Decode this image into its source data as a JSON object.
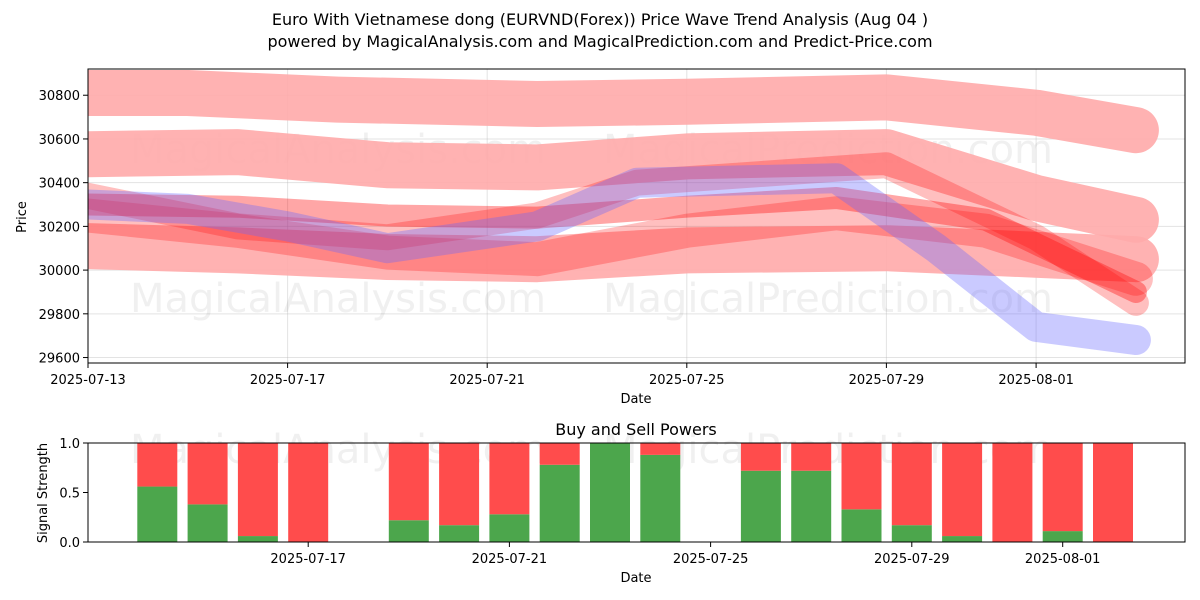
{
  "title": {
    "line1": "Euro With Vietnamese dong (EURVND(Forex)) Price Wave Trend Analysis (Aug 04 )",
    "line2": "powered by MagicalAnalysis.com and MagicalPrediction.com and Predict-Price.com"
  },
  "watermarks": [
    "MagicalAnalysis.com",
    "MagicalPrediction.com"
  ],
  "colors": {
    "red": "#ff0000",
    "blue": "#6666ff",
    "green": "#4ca64c",
    "bar_red": "#ff4c4c",
    "pink": "#ffaaaa"
  },
  "chart_data": [
    {
      "type": "line",
      "title": "",
      "xlabel": "Date",
      "ylabel": "Price",
      "ylim": [
        29575,
        30920
      ],
      "xlim": [
        "2025-07-13",
        "2025-08-04"
      ],
      "x_ticks": [
        "2025-07-13",
        "2025-07-17",
        "2025-07-21",
        "2025-07-25",
        "2025-07-29",
        "2025-08-01"
      ],
      "y_ticks": [
        29600,
        29800,
        30000,
        30200,
        30400,
        30600,
        30800
      ],
      "grid": true,
      "series": [
        {
          "name": "wave-band-top",
          "color": "#ffaaaa",
          "x": [
            "2025-07-13",
            "2025-07-15",
            "2025-07-18",
            "2025-07-22",
            "2025-07-25",
            "2025-07-29",
            "2025-08-01",
            "2025-08-03"
          ],
          "y": [
            30810,
            30810,
            30780,
            30760,
            30770,
            30790,
            30720,
            30640
          ]
        },
        {
          "name": "wave-band-mid",
          "color": "#ffaaaa",
          "x": [
            "2025-07-13",
            "2025-07-16",
            "2025-07-19",
            "2025-07-22",
            "2025-07-25",
            "2025-07-29",
            "2025-08-01",
            "2025-08-03"
          ],
          "y": [
            30530,
            30540,
            30480,
            30470,
            30520,
            30540,
            30330,
            30230
          ]
        },
        {
          "name": "wave-band-low",
          "color": "#ffaaaa",
          "x": [
            "2025-07-13",
            "2025-07-16",
            "2025-07-19",
            "2025-07-22",
            "2025-07-25",
            "2025-07-29",
            "2025-08-01",
            "2025-08-03"
          ],
          "y": [
            30110,
            30090,
            30060,
            30050,
            30090,
            30100,
            30070,
            30050
          ]
        },
        {
          "name": "wave-red-1",
          "color": "#ff0000",
          "x": [
            "2025-07-13",
            "2025-07-16",
            "2025-07-19",
            "2025-07-22",
            "2025-07-25",
            "2025-07-28",
            "2025-07-31",
            "2025-08-03"
          ],
          "y": [
            30300,
            30290,
            30250,
            30240,
            30290,
            30330,
            30230,
            29900
          ]
        },
        {
          "name": "wave-red-2",
          "color": "#ff0000",
          "x": [
            "2025-07-13",
            "2025-07-16",
            "2025-07-19",
            "2025-07-22",
            "2025-07-25",
            "2025-07-28",
            "2025-07-31",
            "2025-08-03"
          ],
          "y": [
            30250,
            30180,
            30080,
            30050,
            30180,
            30260,
            30180,
            29960
          ]
        },
        {
          "name": "wave-red-3",
          "color": "#ff0000",
          "x": [
            "2025-07-13",
            "2025-07-16",
            "2025-07-19",
            "2025-07-22",
            "2025-07-24",
            "2025-07-29",
            "2025-08-01",
            "2025-08-03"
          ],
          "y": [
            30340,
            30200,
            30150,
            30250,
            30400,
            30480,
            30150,
            29850
          ]
        },
        {
          "name": "wave-blue",
          "color": "#6666ff",
          "x": [
            "2025-07-13",
            "2025-07-15",
            "2025-07-17",
            "2025-07-19",
            "2025-07-22",
            "2025-07-24",
            "2025-07-28",
            "2025-07-30",
            "2025-08-01",
            "2025-08-03"
          ],
          "y": [
            30300,
            30280,
            30200,
            30100,
            30200,
            30400,
            30420,
            30100,
            29740,
            29680
          ]
        }
      ]
    },
    {
      "type": "bar",
      "title": "Buy and Sell Powers",
      "xlabel": "Date",
      "ylabel": "Signal Strength",
      "ylim": [
        0,
        1.0
      ],
      "y_ticks": [
        "0.0",
        "0.5",
        "1.0"
      ],
      "x_ticks": [
        "2025-07-17",
        "2025-07-21",
        "2025-07-25",
        "2025-07-29",
        "2025-08-01"
      ],
      "categories": [
        "2025-07-14",
        "2025-07-15",
        "2025-07-16",
        "2025-07-17",
        "2025-07-19",
        "2025-07-20",
        "2025-07-21",
        "2025-07-22",
        "2025-07-23",
        "2025-07-24",
        "2025-07-26",
        "2025-07-27",
        "2025-07-28",
        "2025-07-29",
        "2025-07-30",
        "2025-07-31",
        "2025-08-01",
        "2025-08-02"
      ],
      "series": [
        {
          "name": "Buy",
          "color": "#4ca64c",
          "values": [
            0.56,
            0.38,
            0.06,
            0.0,
            0.22,
            0.17,
            0.28,
            0.78,
            1.0,
            0.88,
            0.72,
            0.72,
            0.33,
            0.17,
            0.06,
            0.0,
            0.11,
            0.0
          ]
        },
        {
          "name": "Sell",
          "color": "#ff4c4c",
          "values": [
            0.44,
            0.62,
            0.94,
            1.0,
            0.78,
            0.83,
            0.72,
            0.22,
            0.0,
            0.12,
            0.28,
            0.28,
            0.67,
            0.83,
            0.94,
            1.0,
            0.89,
            1.0
          ]
        }
      ]
    }
  ]
}
